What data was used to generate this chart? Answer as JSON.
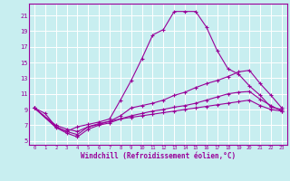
{
  "background_color": "#c8eef0",
  "grid_color": "#ffffff",
  "line_color": "#990099",
  "xlabel": "Windchill (Refroidissement éolien,°C)",
  "xlim": [
    -0.5,
    23.5
  ],
  "ylim": [
    4.5,
    22.5
  ],
  "xticks": [
    0,
    1,
    2,
    3,
    4,
    5,
    6,
    7,
    8,
    9,
    10,
    11,
    12,
    13,
    14,
    15,
    16,
    17,
    18,
    19,
    20,
    21,
    22,
    23
  ],
  "yticks": [
    5,
    7,
    9,
    11,
    13,
    15,
    17,
    19,
    21
  ],
  "line1_x": [
    0,
    1,
    2,
    3,
    4,
    5,
    6,
    7,
    8,
    9,
    10,
    11,
    12,
    13,
    14,
    15,
    16,
    17,
    18,
    19,
    20,
    21,
    22,
    23
  ],
  "line1_y": [
    9.2,
    8.5,
    6.8,
    6.2,
    6.8,
    7.1,
    7.4,
    7.8,
    10.2,
    12.7,
    15.5,
    18.5,
    19.2,
    21.5,
    21.5,
    21.5,
    19.5,
    16.5,
    14.2,
    13.5,
    12.0,
    10.8,
    9.3,
    9.0
  ],
  "line2_x": [
    0,
    2,
    3,
    4,
    5,
    6,
    7,
    8,
    9,
    10,
    11,
    12,
    13,
    14,
    15,
    16,
    17,
    18,
    19,
    20,
    21,
    22,
    23
  ],
  "line2_y": [
    9.2,
    7.0,
    6.5,
    6.2,
    6.8,
    7.1,
    7.5,
    8.2,
    9.2,
    9.5,
    9.8,
    10.2,
    10.8,
    11.2,
    11.8,
    12.3,
    12.7,
    13.2,
    13.8,
    14.0,
    12.3,
    10.8,
    9.2
  ],
  "line3_x": [
    0,
    2,
    3,
    4,
    5,
    6,
    7,
    8,
    9,
    10,
    11,
    12,
    13,
    14,
    15,
    16,
    17,
    18,
    19,
    20,
    21,
    22,
    23
  ],
  "line3_y": [
    9.2,
    6.7,
    6.0,
    5.5,
    6.5,
    7.0,
    7.3,
    7.8,
    8.2,
    8.5,
    8.8,
    9.0,
    9.3,
    9.5,
    9.8,
    10.2,
    10.6,
    11.0,
    11.2,
    11.3,
    10.3,
    9.5,
    8.8
  ],
  "line4_x": [
    0,
    2,
    3,
    4,
    5,
    6,
    7,
    8,
    9,
    10,
    11,
    12,
    13,
    14,
    15,
    16,
    17,
    18,
    19,
    20,
    21,
    22,
    23
  ],
  "line4_y": [
    9.2,
    6.8,
    6.2,
    5.8,
    6.8,
    7.2,
    7.5,
    7.8,
    8.0,
    8.2,
    8.4,
    8.6,
    8.8,
    9.0,
    9.2,
    9.4,
    9.6,
    9.8,
    10.0,
    10.2,
    9.5,
    9.0,
    8.8
  ]
}
